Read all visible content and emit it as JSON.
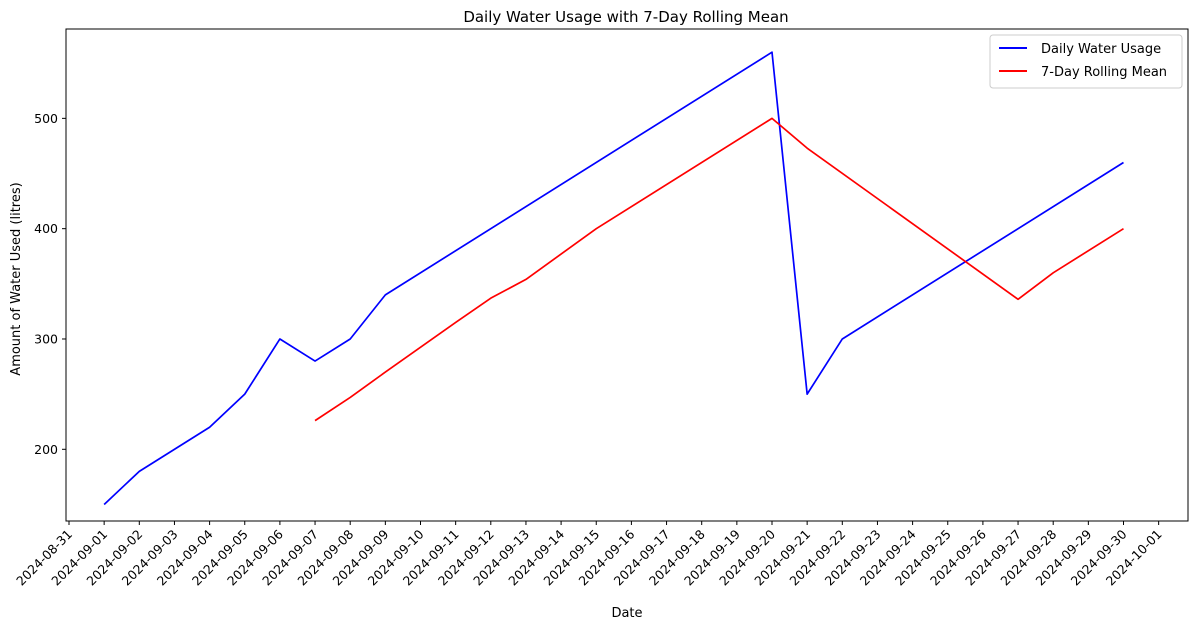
{
  "chart_data": {
    "type": "line",
    "title": "Daily Water Usage with 7-Day Rolling Mean",
    "xlabel": "Date",
    "ylabel": "Amount of Water Used (litres)",
    "x_ticks": [
      "2024-08-31",
      "2024-09-01",
      "2024-09-02",
      "2024-09-03",
      "2024-09-04",
      "2024-09-05",
      "2024-09-06",
      "2024-09-07",
      "2024-09-08",
      "2024-09-09",
      "2024-09-10",
      "2024-09-11",
      "2024-09-12",
      "2024-09-13",
      "2024-09-14",
      "2024-09-15",
      "2024-09-16",
      "2024-09-17",
      "2024-09-18",
      "2024-09-19",
      "2024-09-20",
      "2024-09-21",
      "2024-09-22",
      "2024-09-23",
      "2024-09-24",
      "2024-09-25",
      "2024-09-26",
      "2024-09-27",
      "2024-09-28",
      "2024-09-29",
      "2024-09-30",
      "2024-10-01"
    ],
    "xlim": [
      "2024-08-31",
      "2024-10-01"
    ],
    "y_ticks": [
      200,
      300,
      400,
      500
    ],
    "ylim": [
      135,
      581
    ],
    "grid": false,
    "legend_position": "top-right",
    "series": [
      {
        "name": "Daily Water Usage",
        "color": "#0000ff",
        "points": [
          [
            "2024-09-01",
            150
          ],
          [
            "2024-09-02",
            180
          ],
          [
            "2024-09-04",
            220
          ],
          [
            "2024-09-05",
            250
          ],
          [
            "2024-09-06",
            300
          ],
          [
            "2024-09-07",
            280
          ],
          [
            "2024-09-08",
            300
          ],
          [
            "2024-09-09",
            340
          ],
          [
            "2024-09-20",
            560
          ],
          [
            "2024-09-21",
            250
          ],
          [
            "2024-09-22",
            300
          ],
          [
            "2024-09-30",
            460
          ]
        ]
      },
      {
        "name": "7-Day Rolling Mean",
        "color": "#ff0000",
        "points": [
          [
            "2024-09-07",
            226
          ],
          [
            "2024-09-08",
            247
          ],
          [
            "2024-09-09",
            270
          ],
          [
            "2024-09-11",
            315
          ],
          [
            "2024-09-12",
            337
          ],
          [
            "2024-09-13",
            354
          ],
          [
            "2024-09-15",
            400
          ],
          [
            "2024-09-20",
            500
          ],
          [
            "2024-09-21",
            473
          ],
          [
            "2024-09-27",
            336
          ],
          [
            "2024-09-28",
            360
          ],
          [
            "2024-09-30",
            400
          ]
        ]
      }
    ]
  }
}
